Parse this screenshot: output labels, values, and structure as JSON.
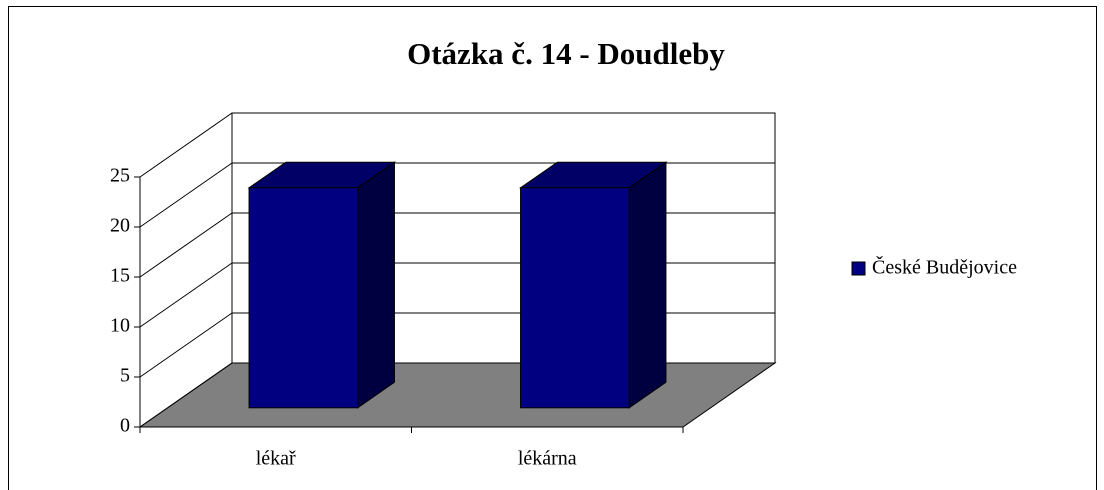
{
  "chart_data": {
    "type": "bar3d",
    "title": "Otázka č. 14 - Doudleby",
    "categories": [
      "lékař",
      "lékárna"
    ],
    "series": [
      {
        "name": "České Budějovice",
        "color": "#000080",
        "values": [
          22,
          22
        ]
      }
    ],
    "ylim": [
      0,
      25
    ],
    "yticks": [
      0,
      5,
      10,
      15,
      20,
      25
    ],
    "grid": true,
    "legend": "right"
  }
}
